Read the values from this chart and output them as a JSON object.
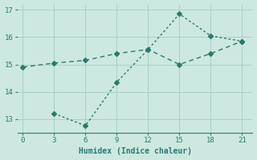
{
  "line1_x": [
    0,
    3,
    6,
    9,
    12,
    15,
    18,
    21
  ],
  "line1_y": [
    14.9,
    15.05,
    15.15,
    15.4,
    15.55,
    15.0,
    15.4,
    15.85
  ],
  "line2_x": [
    3,
    6,
    9,
    12,
    15,
    18,
    21
  ],
  "line2_y": [
    13.2,
    12.75,
    14.35,
    15.55,
    16.85,
    16.05,
    15.85
  ],
  "color": "#2a7a6e",
  "xlabel": "Humidex (Indice chaleur)",
  "xlim": [
    -0.5,
    22
  ],
  "ylim": [
    12.5,
    17.2
  ],
  "xticks": [
    0,
    3,
    6,
    9,
    12,
    15,
    18,
    21
  ],
  "yticks": [
    13,
    14,
    15,
    16,
    17
  ],
  "background_color": "#cce8e0",
  "grid_color": "#aacfc7",
  "linewidth": 1.0,
  "markersize": 3
}
